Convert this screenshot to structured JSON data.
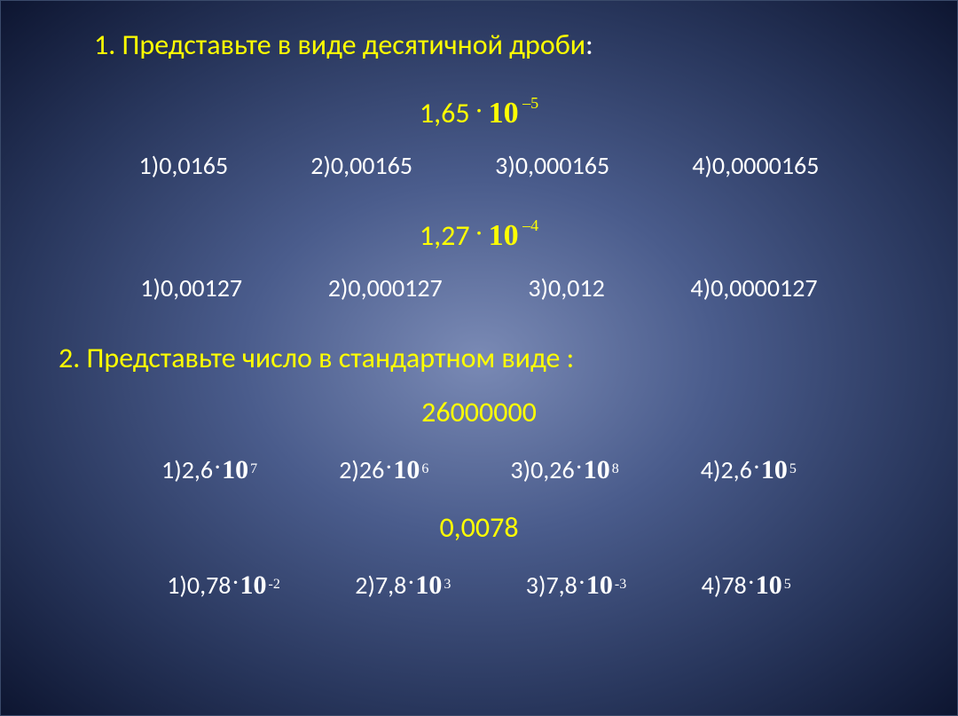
{
  "colors": {
    "heading": "#ffff00",
    "text": "#ffffff",
    "bg_center": "#7a8ab5",
    "bg_edge": "#0d1530"
  },
  "fonts": {
    "body": "Calibri",
    "math": "Times New Roman",
    "heading_size": 32,
    "option_size": 28
  },
  "section1": {
    "number": "1.",
    "title": "Представьте в виде десятичной дроби",
    "colon": ":",
    "q1": {
      "coef": "1,65 ",
      "base": "10",
      "exp": "–5",
      "options": [
        {
          "n": "1)",
          "val": "0,0165"
        },
        {
          "n": "2) ",
          "val": "0,00165"
        },
        {
          "n": "3) ",
          "val": "0,000165"
        },
        {
          "n": "4) ",
          "val": "0,0000165"
        }
      ]
    },
    "q2": {
      "coef": "1,27 ",
      "base": "10",
      "exp": "–4",
      "options": [
        {
          "n": "1) ",
          "val": "0,00127"
        },
        {
          "n": "2) ",
          "val": "0,000127"
        },
        {
          "n": "3) ",
          "val": "0,012"
        },
        {
          "n": "4) ",
          "val": "0,0000127"
        }
      ]
    }
  },
  "section2": {
    "number": "2.",
    "title": "Представьте число в стандартном виде :",
    "q1": {
      "number": "26000000",
      "options": [
        {
          "n": "1)",
          "coef": "2,6 ",
          "base": "10",
          "exp": " 7"
        },
        {
          "n": "2) ",
          "coef": "26 ",
          "base": "10",
          "exp": " 6"
        },
        {
          "n": "3) ",
          "coef": "0,26 ",
          "base": "10",
          "exp": " 8"
        },
        {
          "n": "4) ",
          "coef": "2,6 ",
          "base": "10",
          "exp": " 5"
        }
      ]
    },
    "q2": {
      "number": "0,0078",
      "options": [
        {
          "n": "1)",
          "coef": "0,78 ",
          "base": "10",
          "exp": " -2"
        },
        {
          "n": "2) ",
          "coef": "7,8 ",
          "base": "10",
          "exp": " 3"
        },
        {
          "n": "3) ",
          "coef": "7,8 ",
          "base": "10",
          "exp": " -3"
        },
        {
          "n": "4) ",
          "coef": "78 ",
          "base": "10",
          "exp": " 5"
        }
      ]
    }
  }
}
